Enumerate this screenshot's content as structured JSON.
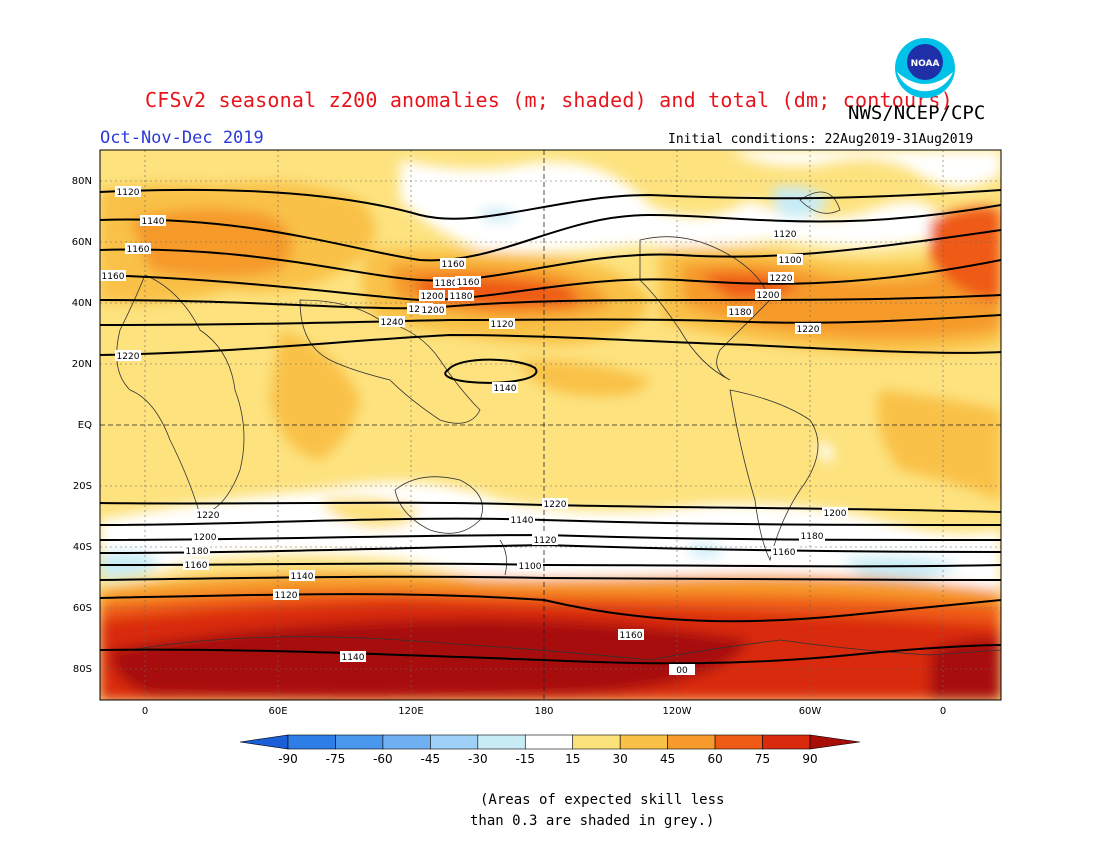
{
  "title": "CFSv2 seasonal z200 anomalies (m; shaded) and total (dm; contours)",
  "agency": "NWS/NCEP/CPC",
  "logo_text": "NOAA",
  "season": "Oct-Nov-Dec 2019",
  "initial_conditions": "Initial conditions: 22Aug2019-31Aug2019",
  "lat_labels": [
    "80N",
    "60N",
    "40N",
    "20N",
    "EQ",
    "20S",
    "40S",
    "60S",
    "80S"
  ],
  "lon_labels": [
    "0",
    "60E",
    "120E",
    "180",
    "120W",
    "60W",
    "0"
  ],
  "contour_labels": [
    "1120",
    "1140",
    "1160",
    "1160",
    "1120",
    "1140",
    "1160",
    "1180",
    "1200",
    "1220",
    "1240",
    "1120",
    "1140",
    "1160",
    "1180",
    "1200",
    "1220",
    "1220",
    "1220",
    "1200",
    "1180",
    "1160",
    "1220",
    "1200",
    "1180",
    "1160",
    "1140",
    "1120",
    "1100",
    "1120",
    "1100",
    "1220",
    "1200",
    "1180",
    "1160",
    "1140",
    "00"
  ],
  "colorbar": {
    "labels": [
      "-90",
      "-75",
      "-60",
      "-45",
      "-30",
      "-15",
      "15",
      "30",
      "45",
      "60",
      "75",
      "90"
    ],
    "colors": [
      "#1a5fd8",
      "#2e7ee8",
      "#4a97ee",
      "#6fb0f2",
      "#9fd0f7",
      "#c8ecf6",
      "#ffffff",
      "#fce27a",
      "#f9c147",
      "#f69a2c",
      "#ef5a15",
      "#d92a0e",
      "#a80e08"
    ]
  },
  "note": [
    "(Areas of expected skill less",
    "than 0.3 are shaded in grey.)"
  ]
}
